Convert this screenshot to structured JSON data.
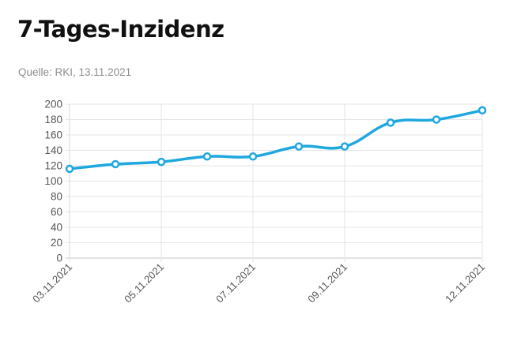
{
  "chart_data": {
    "type": "line",
    "title": "7-Tages-Inzidenz",
    "source": "Quelle: RKI, 13.11.2021",
    "xlabel": "",
    "ylabel": "",
    "ylim": [
      0,
      200
    ],
    "yticks": [
      0,
      20,
      40,
      60,
      80,
      100,
      120,
      140,
      160,
      180,
      200
    ],
    "grid": true,
    "legend": "none",
    "series_color": "#1fa7e0",
    "x": [
      "03.11.2021",
      "04.11.2021",
      "05.11.2021",
      "06.11.2021",
      "07.11.2021",
      "08.11.2021",
      "09.11.2021",
      "10.11.2021",
      "11.11.2021",
      "12.11.2021"
    ],
    "x_tick_labels": [
      "03.11.2021",
      "05.11.2021",
      "07.11.2021",
      "09.11.2021",
      "12.11.2021"
    ],
    "series": [
      {
        "values": [
          116,
          122,
          125,
          132,
          132,
          145,
          145,
          176,
          180,
          192
        ]
      }
    ]
  }
}
